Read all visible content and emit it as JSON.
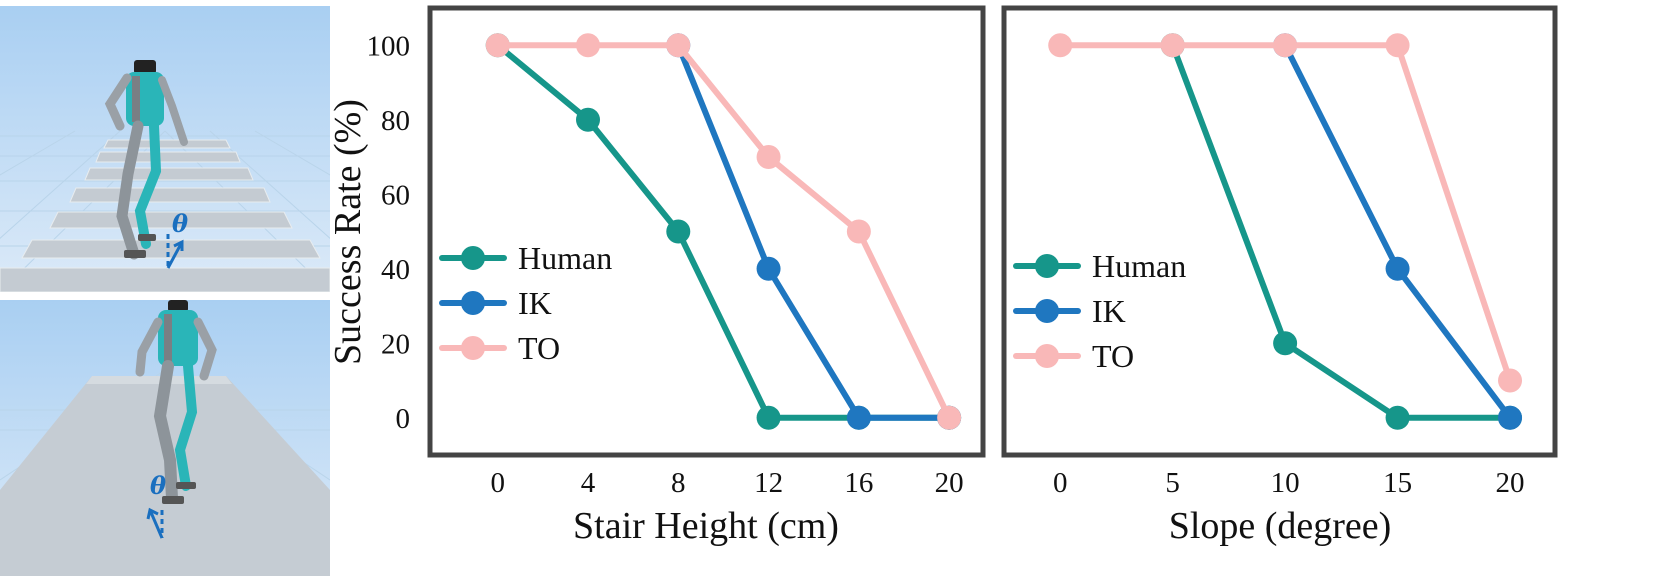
{
  "figure": {
    "left_panels": [
      {
        "name": "stairs",
        "angle_label": "θ"
      },
      {
        "name": "slope",
        "angle_label": "θ"
      }
    ],
    "ylabel": "Success Rate (%)"
  },
  "colors": {
    "Human": "#16968a",
    "IK": "#1f77c0",
    "TO": "#f9b8b8",
    "frame": "#444444",
    "robot_body": "#2ab5b8",
    "annotation": "#1a6fbf"
  },
  "chart_data": [
    {
      "type": "line",
      "title": "",
      "xlabel": "Stair Height (cm)",
      "ylabel": "Success Rate (%)",
      "x": [
        0,
        4,
        8,
        12,
        16,
        20
      ],
      "xticks": [
        "0",
        "4",
        "8",
        "12",
        "16",
        "20"
      ],
      "yticks": [
        "0",
        "20",
        "40",
        "60",
        "80",
        "100"
      ],
      "xlim": [
        -3,
        21.5
      ],
      "ylim": [
        -10,
        110
      ],
      "grid": false,
      "legend_position": "center-left",
      "series": [
        {
          "name": "Human",
          "x": [
            0,
            4,
            8,
            12,
            16,
            20
          ],
          "values": [
            100,
            80,
            50,
            0,
            0,
            0
          ]
        },
        {
          "name": "IK",
          "x": [
            8,
            12,
            16,
            20
          ],
          "values": [
            100,
            40,
            0,
            0
          ]
        },
        {
          "name": "TO",
          "x": [
            0,
            4,
            8,
            12,
            16,
            20
          ],
          "values": [
            100,
            100,
            100,
            70,
            50,
            0
          ]
        }
      ]
    },
    {
      "type": "line",
      "title": "",
      "xlabel": "Slope (degree)",
      "ylabel": "",
      "x": [
        0,
        5,
        10,
        15,
        20
      ],
      "xticks": [
        "0",
        "5",
        "10",
        "15",
        "20"
      ],
      "yticks": [],
      "xlim": [
        -2.5,
        22
      ],
      "ylim": [
        -10,
        110
      ],
      "grid": false,
      "legend_position": "center-left",
      "series": [
        {
          "name": "Human",
          "x": [
            5,
            10,
            15,
            20
          ],
          "values": [
            100,
            20,
            0,
            0
          ]
        },
        {
          "name": "IK",
          "x": [
            10,
            15,
            20
          ],
          "values": [
            100,
            40,
            0
          ]
        },
        {
          "name": "TO",
          "x": [
            0,
            5,
            10,
            15,
            20
          ],
          "values": [
            100,
            100,
            100,
            100,
            10
          ]
        }
      ]
    }
  ]
}
